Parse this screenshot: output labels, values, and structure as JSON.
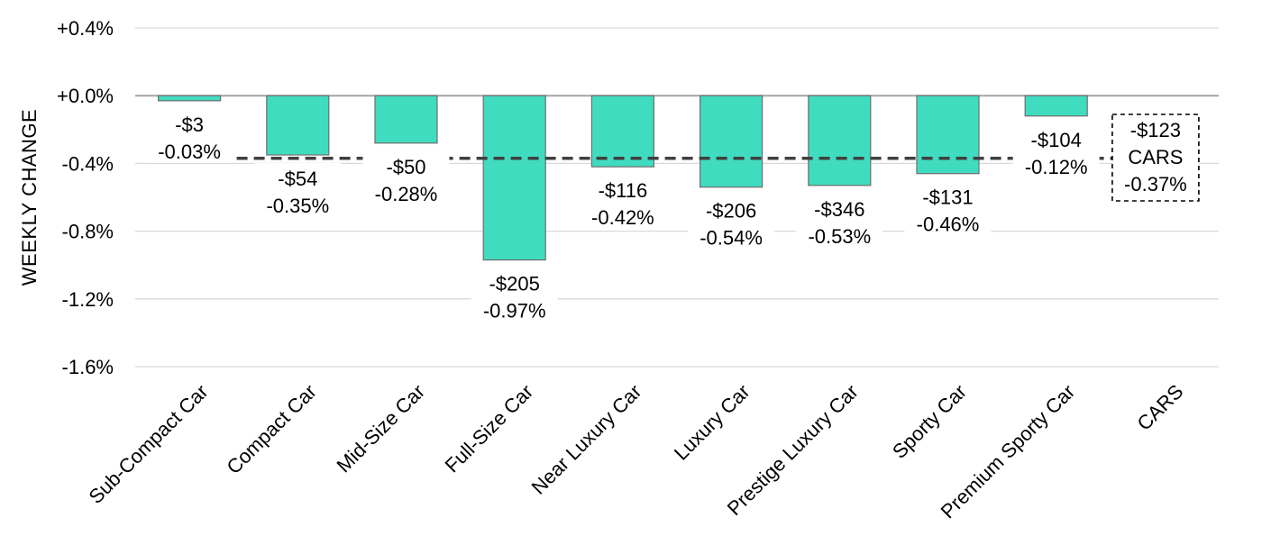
{
  "chart_data": {
    "type": "bar",
    "ylabel": "WEEKLY CHANGE",
    "ylim": [
      -1.6,
      0.4
    ],
    "yticks": [
      "+0.4%",
      "+0.0%",
      "-0.4%",
      "-0.8%",
      "-1.2%",
      "-1.6%"
    ],
    "ytick_values": [
      0.4,
      0.0,
      -0.4,
      -0.8,
      -1.2,
      -1.6
    ],
    "grid": true,
    "bar_color": "#40dcc0",
    "categories": [
      "Sub-Compact Car",
      "Compact Car",
      "Mid-Size Car",
      "Full-Size Car",
      "Near Luxury Car",
      "Luxury Car",
      "Prestige Luxury Car",
      "Sporty Car",
      "Premium Sporty Car",
      "CARS"
    ],
    "values": [
      -0.03,
      -0.35,
      -0.28,
      -0.97,
      -0.42,
      -0.54,
      -0.53,
      -0.46,
      -0.12,
      null
    ],
    "dollar_labels": [
      "-$3",
      "-$54",
      "-$50",
      "-$205",
      "-$116",
      "-$206",
      "-$346",
      "-$131",
      "-$104"
    ],
    "percent_labels": [
      "-0.03%",
      "-0.35%",
      "-0.28%",
      "-0.97%",
      "-0.42%",
      "-0.54%",
      "-0.53%",
      "-0.46%",
      "-0.12%"
    ],
    "reference_line": {
      "value": -0.37,
      "style": "dashed",
      "label_lines": [
        "-$123",
        "CARS",
        "-0.37%"
      ]
    }
  }
}
